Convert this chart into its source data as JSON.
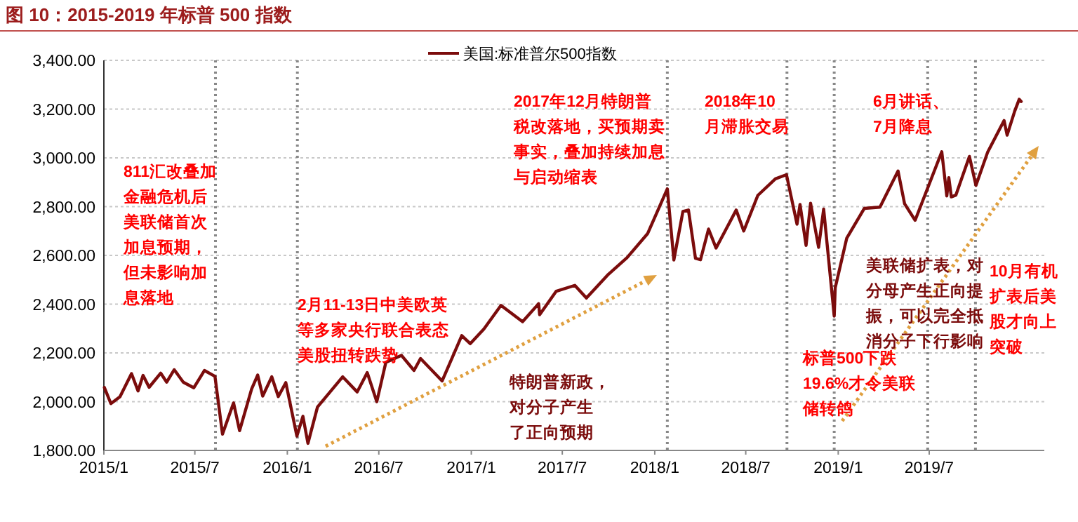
{
  "chart_data": {
    "type": "line",
    "title": "图 10：2015-2019 年标普 500 指数",
    "x": [
      "2015-01-02",
      "2015-01-15",
      "2015-02-02",
      "2015-02-25",
      "2015-03-10",
      "2015-03-20",
      "2015-04-01",
      "2015-04-24",
      "2015-05-06",
      "2015-05-21",
      "2015-06-08",
      "2015-06-29",
      "2015-07-20",
      "2015-08-10",
      "2015-08-25",
      "2015-09-16",
      "2015-09-28",
      "2015-10-22",
      "2015-11-03",
      "2015-11-13",
      "2015-12-01",
      "2015-12-14",
      "2015-12-29",
      "2016-01-20",
      "2016-02-01",
      "2016-02-11",
      "2016-03-01",
      "2016-04-20",
      "2016-05-19",
      "2016-06-08",
      "2016-06-27",
      "2016-07-15",
      "2016-08-15",
      "2016-09-09",
      "2016-09-22",
      "2016-11-04",
      "2016-12-13",
      "2016-12-30",
      "2017-01-26",
      "2017-03-01",
      "2017-04-13",
      "2017-05-15",
      "2017-05-17",
      "2017-06-19",
      "2017-07-26",
      "2017-08-18",
      "2017-09-29",
      "2017-11-07",
      "2017-12-18",
      "2018-01-26",
      "2018-02-08",
      "2018-02-26",
      "2018-03-09",
      "2018-03-23",
      "2018-04-02",
      "2018-04-18",
      "2018-05-03",
      "2018-06-12",
      "2018-06-27",
      "2018-07-25",
      "2018-08-29",
      "2018-09-20",
      "2018-10-11",
      "2018-10-17",
      "2018-10-29",
      "2018-11-07",
      "2018-11-23",
      "2018-12-03",
      "2018-12-24",
      "2018-12-26",
      "2019-01-18",
      "2019-02-22",
      "2019-03-25",
      "2019-04-30",
      "2019-05-13",
      "2019-06-03",
      "2019-07-26",
      "2019-08-05",
      "2019-08-09",
      "2019-08-14",
      "2019-08-23",
      "2019-09-19",
      "2019-10-02",
      "2019-10-25",
      "2019-11-27",
      "2019-12-03",
      "2019-12-18",
      "2019-12-27",
      "2019-12-31"
    ],
    "series": [
      {
        "name": "美国:标准普尔500指数",
        "color": "#7b0c0c",
        "values": [
          2058,
          1992,
          2020,
          2115,
          2044,
          2108,
          2059,
          2117,
          2080,
          2131,
          2080,
          2057,
          2128,
          2104,
          1867,
          1995,
          1881,
          2052,
          2109,
          2023,
          2102,
          2021,
          2078,
          1859,
          1940,
          1829,
          1978,
          2102,
          2040,
          2119,
          2000,
          2161,
          2190,
          2128,
          2177,
          2085,
          2271,
          2238,
          2298,
          2395,
          2328,
          2402,
          2357,
          2453,
          2477,
          2425,
          2519,
          2591,
          2690,
          2873,
          2581,
          2780,
          2786,
          2588,
          2582,
          2708,
          2630,
          2786,
          2700,
          2846,
          2914,
          2931,
          2728,
          2809,
          2641,
          2814,
          2633,
          2790,
          2351,
          2467,
          2671,
          2793,
          2798,
          2946,
          2812,
          2744,
          3025,
          2844,
          2919,
          2840,
          2847,
          3006,
          2887,
          3022,
          3153,
          3093,
          3191,
          3240,
          3231
        ]
      }
    ],
    "xlim": [
      "2015-01-01",
      "2020-02-15"
    ],
    "xticks": [
      {
        "value": "2015-01-01",
        "label": "2015/1"
      },
      {
        "value": "2015-07-01",
        "label": "2015/7"
      },
      {
        "value": "2016-01-01",
        "label": "2016/1"
      },
      {
        "value": "2016-07-01",
        "label": "2016/7"
      },
      {
        "value": "2017-01-01",
        "label": "2017/1"
      },
      {
        "value": "2017-07-01",
        "label": "2017/7"
      },
      {
        "value": "2018-01-01",
        "label": "2018/1"
      },
      {
        "value": "2018-07-01",
        "label": "2018/7"
      },
      {
        "value": "2019-01-01",
        "label": "2019/1"
      },
      {
        "value": "2019-07-01",
        "label": "2019/7"
      }
    ],
    "ylim": [
      1800,
      3400
    ],
    "yticks": [
      {
        "value": 1800,
        "label": "1,800.00"
      },
      {
        "value": 2000,
        "label": "2,000.00"
      },
      {
        "value": 2200,
        "label": "2,200.00"
      },
      {
        "value": 2400,
        "label": "2,400.00"
      },
      {
        "value": 2600,
        "label": "2,600.00"
      },
      {
        "value": 2800,
        "label": "2,800.00"
      },
      {
        "value": 3000,
        "label": "3,000.00"
      },
      {
        "value": 3200,
        "label": "3,200.00"
      },
      {
        "value": 3400,
        "label": "3,400.00"
      }
    ],
    "grid": "y",
    "legend": "top",
    "ref_lines": [
      {
        "axis": "x",
        "value": "2015-08-11",
        "color": "#888888",
        "line_style": "dotted"
      },
      {
        "axis": "x",
        "value": "2016-01-21",
        "color": "#888888",
        "line_style": "dotted"
      },
      {
        "axis": "x",
        "value": "2018-01-26",
        "color": "#888888",
        "line_style": "dotted"
      },
      {
        "axis": "x",
        "value": "2018-09-21",
        "color": "#888888",
        "line_style": "dotted"
      },
      {
        "axis": "x",
        "value": "2018-12-24",
        "color": "#888888",
        "line_style": "dotted"
      },
      {
        "axis": "x",
        "value": "2019-06-28",
        "color": "#888888",
        "line_style": "dotted"
      },
      {
        "axis": "x",
        "value": "2019-10-01",
        "color": "#888888",
        "line_style": "dotted"
      }
    ],
    "annotations": [
      "811汇改叠加金融危机后美联储首次加息预期，但未影响加息落地",
      "2月11-13日中美欧英等多家央行联合表态美股扭转跌势",
      "2017年12月特朗普税改落地，买预期卖事实，叠加持续加息与启动缩表",
      "2018年10月滞胀交易",
      "6月讲话、7月降息",
      "特朗普新政，对分子产生了正向预期",
      "美联储扩表，对分母产生正向提振，可以完全抵消分子下行影响",
      "标普500下跌19.6%才令美联储转鸽",
      "10月有机扩表后美股才向上突破"
    ]
  }
}
